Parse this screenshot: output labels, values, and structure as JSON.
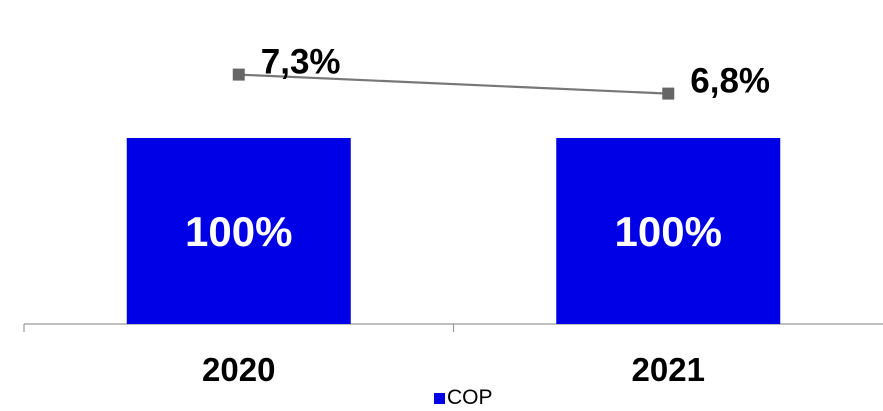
{
  "chart_data": {
    "type": "bar",
    "categories": [
      "2020",
      "2021"
    ],
    "series": [
      {
        "name": "COP",
        "kind": "bar",
        "values": [
          100,
          100
        ],
        "labels": [
          "100%",
          "100%"
        ],
        "color": "#0000e6"
      },
      {
        "kind": "line",
        "values": [
          7.3,
          6.8
        ],
        "labels": [
          "7,3%",
          "6,8%"
        ],
        "color": "#777777"
      }
    ],
    "legend": {
      "position": "bottom",
      "entries": [
        "COP"
      ]
    },
    "grid": false,
    "xlabel": "",
    "ylabel": ""
  }
}
